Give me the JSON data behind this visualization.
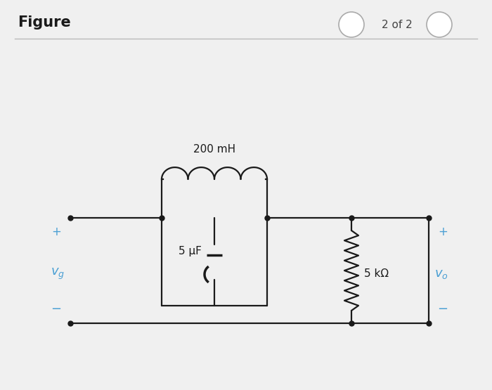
{
  "bg_color": "#f0f0f0",
  "title": "Figure",
  "title_fontsize": 15,
  "nav_text": "2 of 2",
  "circuit": {
    "inductor_label": "200 mH",
    "capacitor_label": "5 μF",
    "resistor_label": "5 kΩ",
    "wire_color": "#1a1a1a",
    "comp_color": "#1a1a1a",
    "label_color": "#4a9fd4",
    "node_color": "#1a1a1a"
  }
}
